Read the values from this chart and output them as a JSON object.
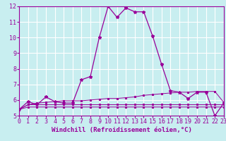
{
  "xlabel": "Windchill (Refroidissement éolien,°C)",
  "background_color": "#c8eef0",
  "grid_color": "#ffffff",
  "line_color": "#990099",
  "x_hours": [
    0,
    1,
    2,
    3,
    4,
    5,
    6,
    7,
    8,
    9,
    10,
    11,
    12,
    13,
    14,
    15,
    16,
    17,
    18,
    19,
    20,
    21,
    22,
    23
  ],
  "series_main": [
    5.4,
    5.9,
    5.7,
    6.2,
    5.9,
    5.8,
    5.8,
    7.3,
    7.5,
    10.0,
    12.0,
    11.3,
    11.9,
    11.65,
    11.65,
    10.1,
    8.3,
    6.6,
    6.5,
    6.1,
    6.5,
    6.5,
    5.0,
    5.8
  ],
  "series_flat1": [
    5.4,
    5.55,
    5.55,
    5.55,
    5.55,
    5.55,
    5.55,
    5.55,
    5.55,
    5.55,
    5.55,
    5.55,
    5.55,
    5.55,
    5.55,
    5.55,
    5.55,
    5.55,
    5.55,
    5.55,
    5.55,
    5.55,
    5.55,
    5.55
  ],
  "series_flat2": [
    5.4,
    5.7,
    5.7,
    5.7,
    5.7,
    5.7,
    5.7,
    5.7,
    5.7,
    5.7,
    5.7,
    5.7,
    5.7,
    5.7,
    5.7,
    5.7,
    5.7,
    5.7,
    5.7,
    5.7,
    5.7,
    5.7,
    5.7,
    5.7
  ],
  "series_rising": [
    5.4,
    5.7,
    5.8,
    5.85,
    5.9,
    5.95,
    5.95,
    5.95,
    6.0,
    6.05,
    6.1,
    6.1,
    6.15,
    6.2,
    6.3,
    6.35,
    6.4,
    6.45,
    6.5,
    6.5,
    6.55,
    6.55,
    6.55,
    5.85
  ],
  "ylim": [
    5,
    12
  ],
  "xlim": [
    0,
    23
  ],
  "yticks": [
    5,
    6,
    7,
    8,
    9,
    10,
    11,
    12
  ],
  "xticks": [
    0,
    1,
    2,
    3,
    4,
    5,
    6,
    7,
    8,
    9,
    10,
    11,
    12,
    13,
    14,
    15,
    16,
    17,
    18,
    19,
    20,
    21,
    22,
    23
  ],
  "xlabel_fontsize": 6.5,
  "tick_fontsize": 6
}
